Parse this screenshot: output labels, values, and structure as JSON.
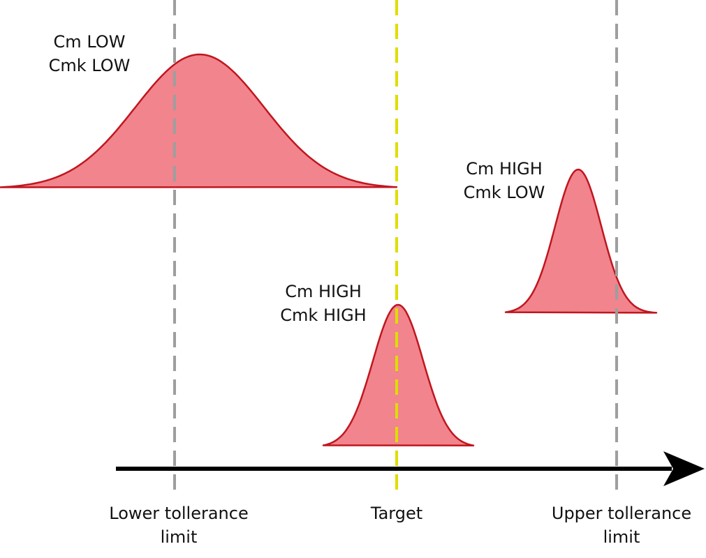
{
  "colors": {
    "curve_fill": "#ee6f78",
    "curve_stroke": "#c0161f",
    "limit_line": "#9e9e9e",
    "target_line": "#dede00",
    "axis": "#000000"
  },
  "distributions": [
    {
      "id": "wide",
      "label_line1": "Cm LOW",
      "label_line2": "Cmk LOW"
    },
    {
      "id": "narrow-centered",
      "label_line1": "Cm HIGH",
      "label_line2": "Cmk HIGH"
    },
    {
      "id": "narrow-shifted",
      "label_line1": "Cm HIGH",
      "label_line2": "Cmk LOW"
    }
  ],
  "markers": {
    "lower": {
      "line1": "Lower tollerance",
      "line2": "limit"
    },
    "target": {
      "line1": "Target"
    },
    "upper": {
      "line1": "Upper tollerance",
      "line2": "limit"
    }
  }
}
